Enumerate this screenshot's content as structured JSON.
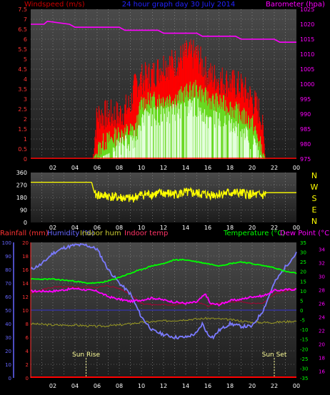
{
  "colors": {
    "bg": "#000000",
    "panel_top": "#4a4a4a",
    "panel_bottom": "#1c1c1c",
    "wind_gust": "#ff0000",
    "wind_avg": "#66dd22",
    "wind_min": "#e6ffe0",
    "baro": "#ff00ff",
    "winddir": "#ffff00",
    "humidity": "#7a7aff",
    "indoor_hum": "#999922",
    "indoor_temp": "#aa0033",
    "temperature": "#00ff00",
    "dewpoint": "#ff00ff",
    "rain": "#ff0000",
    "left_axis_rain": "#ff3333",
    "left_axis_hum": "#6666ff",
    "temp_axis": "#00ff00",
    "dew_axis": "#ff00ff",
    "sun_marker": "#ffff99"
  },
  "header": {
    "windspeed_label": "Windspeed (m/s)",
    "graph_title": "24 hour graph day  30 July 2014",
    "barometer_label": "Barometer (hpa)"
  },
  "lower_header": {
    "rainfall": "Rainfall (mm)",
    "humidity": "Humidity (%)",
    "indoor_hum": "Indoor hum",
    "indoor_temp": "Indoor temp",
    "temperature": "Temperature (°C)",
    "dewpoint": "Dew Point (°C)"
  },
  "compass_letters": [
    "N",
    "W",
    "S",
    "E",
    "N"
  ],
  "annotations": {
    "sunrise": "Sun Rise",
    "sunset": "Sun Set"
  },
  "chart_data": [
    {
      "type": "line",
      "title": "24 hour graph day  30 July 2014",
      "x_ticks": [
        "02",
        "04",
        "06",
        "08",
        "10",
        "12",
        "14",
        "16",
        "18",
        "20",
        "22",
        "00"
      ],
      "x_hours_range": [
        0,
        24
      ],
      "left_axis": {
        "label": "Windspeed (m/s)",
        "ticks": [
          "7.5",
          "7",
          "6.5",
          "6",
          "5.5",
          "5",
          "4.5",
          "4",
          "3.5",
          "3",
          "2.5",
          "2",
          "1.5",
          "1",
          "0.5",
          "0"
        ],
        "range": [
          0,
          7.5
        ]
      },
      "right_axis": {
        "label": "Barometer (hpa)",
        "ticks": [
          "1025",
          "1020",
          "1015",
          "1010",
          "1005",
          "1000",
          "995",
          "990",
          "985",
          "980",
          "975"
        ],
        "range": [
          975,
          1025
        ]
      },
      "series": [
        {
          "name": "Windspeed (m/s)",
          "role": "gust",
          "hours": [
            5.6,
            6.0,
            7.0,
            8.0,
            9.0,
            9.5,
            10.0,
            11.0,
            12.0,
            13.0,
            14.0,
            15.0,
            16.0,
            17.0,
            18.0,
            19.0,
            20.0,
            20.8,
            21.2
          ],
          "values": [
            0,
            2.0,
            2.0,
            2.0,
            2.5,
            3.6,
            3.8,
            4.0,
            4.5,
            4.6,
            5.0,
            5.0,
            4.0,
            3.8,
            3.6,
            3.4,
            2.8,
            2.0,
            0
          ]
        },
        {
          "name": "average",
          "role": "avg",
          "hours": [
            5.6,
            6.5,
            8.0,
            9.5,
            10.0,
            12.0,
            13.0,
            14.0,
            15.0,
            16.0,
            17.0,
            18.0,
            19.0,
            20.0,
            21.2
          ],
          "values": [
            0,
            0.8,
            1.2,
            1.5,
            2.8,
            3.0,
            3.0,
            3.3,
            3.5,
            3.0,
            2.8,
            2.6,
            2.2,
            1.8,
            0
          ]
        },
        {
          "name": "minimum",
          "role": "min",
          "hours": [
            6.0,
            7.5,
            9.5,
            10.0,
            12.0,
            14.0,
            15.0,
            16.0,
            18.0,
            19.5,
            21.0
          ],
          "values": [
            0,
            0.4,
            1.0,
            2.0,
            2.2,
            2.5,
            2.6,
            2.0,
            1.8,
            1.2,
            0
          ]
        },
        {
          "name": "Barometer (hpa)",
          "axis": "right",
          "hours": [
            0,
            1.2,
            1.5,
            3.5,
            4.0,
            8.0,
            8.5,
            11.5,
            12.0,
            15.0,
            15.5,
            18.5,
            19.0,
            22.0,
            22.5,
            24
          ],
          "values": [
            1020,
            1020,
            1021,
            1020,
            1019,
            1019,
            1018,
            1018,
            1017,
            1017,
            1016,
            1016,
            1015,
            1015,
            1014,
            1014
          ]
        }
      ]
    },
    {
      "type": "line",
      "x_ticks": [
        "02",
        "04",
        "06",
        "08",
        "10",
        "12",
        "14",
        "16",
        "18",
        "20",
        "22",
        "00"
      ],
      "left_axis": {
        "ticks": [
          "360",
          "270",
          "180",
          "90",
          "0"
        ],
        "range": [
          0,
          360
        ]
      },
      "series": [
        {
          "name": "Wind direction",
          "hours": [
            0,
            5.5,
            5.8,
            7,
            8,
            9,
            10,
            11,
            12,
            13,
            14,
            15,
            16,
            17,
            18,
            19,
            20,
            21,
            21.3,
            24
          ],
          "values": [
            290,
            290,
            200,
            190,
            180,
            170,
            200,
            205,
            210,
            205,
            215,
            210,
            200,
            205,
            215,
            210,
            200,
            195,
            215,
            215
          ]
        }
      ]
    },
    {
      "type": "line",
      "x_ticks": [
        "02",
        "04",
        "06",
        "08",
        "10",
        "12",
        "14",
        "16",
        "18",
        "20",
        "22",
        "00"
      ],
      "left_axis_rain": {
        "label": "Rainfall (mm)",
        "ticks": [
          "20",
          "18",
          "16",
          "14",
          "12",
          "10",
          "8",
          "6",
          "4",
          "2",
          "0"
        ],
        "range": [
          0,
          20
        ]
      },
      "left_axis_humidity": {
        "label": "Humidity (%)",
        "ticks": [
          "100",
          "90",
          "80",
          "70",
          "60",
          "50",
          "40",
          "30",
          "20",
          "10",
          "0"
        ],
        "range": [
          0,
          100
        ]
      },
      "temp_axis": {
        "label": "Temperature (°C)",
        "ticks": [
          "35",
          "30",
          "25",
          "20",
          "15",
          "10",
          "5",
          "0",
          "-5",
          "-10",
          "-15",
          "-20",
          "-25",
          "-30",
          "-35"
        ],
        "range": [
          -35,
          35
        ]
      },
      "right_axis": {
        "label": "Dew Point (°C)",
        "ticks": [
          "34",
          "32",
          "30",
          "28",
          "26",
          "24",
          "22",
          "20",
          "18",
          "16"
        ],
        "range": [
          15,
          35
        ]
      },
      "series": [
        {
          "name": "Humidity (%)",
          "hours": [
            0,
            1,
            2,
            3,
            4,
            5,
            6,
            7,
            8,
            9,
            10,
            11,
            12,
            13,
            14,
            15,
            15.5,
            16,
            16.5,
            17,
            18,
            19,
            20,
            21,
            22,
            23,
            24
          ],
          "values": [
            80,
            84,
            92,
            96,
            98,
            98,
            95,
            80,
            70,
            62,
            45,
            35,
            32,
            30,
            30,
            33,
            40,
            32,
            30,
            35,
            40,
            38,
            38,
            50,
            70,
            82,
            92
          ]
        },
        {
          "name": "Temperature (°C)",
          "hours": [
            0,
            2,
            4,
            5,
            6,
            7,
            8,
            9,
            10,
            11,
            12,
            13,
            14,
            15,
            16,
            17,
            18,
            19,
            20,
            21,
            22,
            23,
            24
          ],
          "values": [
            16,
            16,
            15,
            14,
            14,
            15,
            17,
            19,
            21,
            23,
            24,
            26,
            26,
            25,
            24,
            23,
            24,
            25,
            24,
            23,
            22,
            20,
            19
          ]
        },
        {
          "name": "Dew Point (°C)",
          "hours": [
            0,
            2,
            4,
            6,
            7,
            8,
            9,
            10,
            11,
            12,
            13,
            14,
            15,
            15.8,
            16.2,
            17,
            18,
            19,
            20,
            21,
            22,
            23,
            24
          ],
          "values": [
            27.8,
            27.8,
            28.2,
            27.8,
            27.0,
            26.6,
            26.3,
            26.5,
            26.8,
            26.5,
            26.2,
            26.0,
            26.2,
            27.4,
            26.0,
            25.8,
            26.4,
            26.6,
            27.0,
            27.1,
            27.9,
            28.0,
            28.1
          ]
        },
        {
          "name": "Indoor temp",
          "hours": [
            0,
            1,
            2,
            3,
            4,
            5,
            6,
            7,
            8,
            9,
            10,
            11,
            12,
            13,
            14,
            15,
            16,
            17,
            18,
            19,
            20,
            21,
            22,
            23,
            24
          ],
          "values": [
            62,
            65,
            67,
            67,
            67,
            67,
            67,
            68,
            66,
            62,
            55,
            54,
            54,
            54,
            55,
            56,
            53,
            55,
            56,
            56,
            55,
            55,
            62,
            64,
            66
          ]
        },
        {
          "name": "Indoor hum",
          "hours": [
            0,
            2,
            4,
            6,
            8,
            10,
            12,
            14,
            16,
            18,
            20,
            22,
            24
          ],
          "values": [
            40,
            39,
            39,
            38,
            39,
            41,
            42,
            43,
            44,
            43,
            41,
            41,
            42
          ]
        },
        {
          "name": "Rainfall (mm)",
          "hours": [
            0,
            24
          ],
          "values": [
            0,
            0
          ]
        }
      ],
      "annotations": [
        {
          "label": "Sun Rise",
          "hour": 5.0
        },
        {
          "label": "Sun Set",
          "hour": 22.0
        }
      ]
    }
  ]
}
